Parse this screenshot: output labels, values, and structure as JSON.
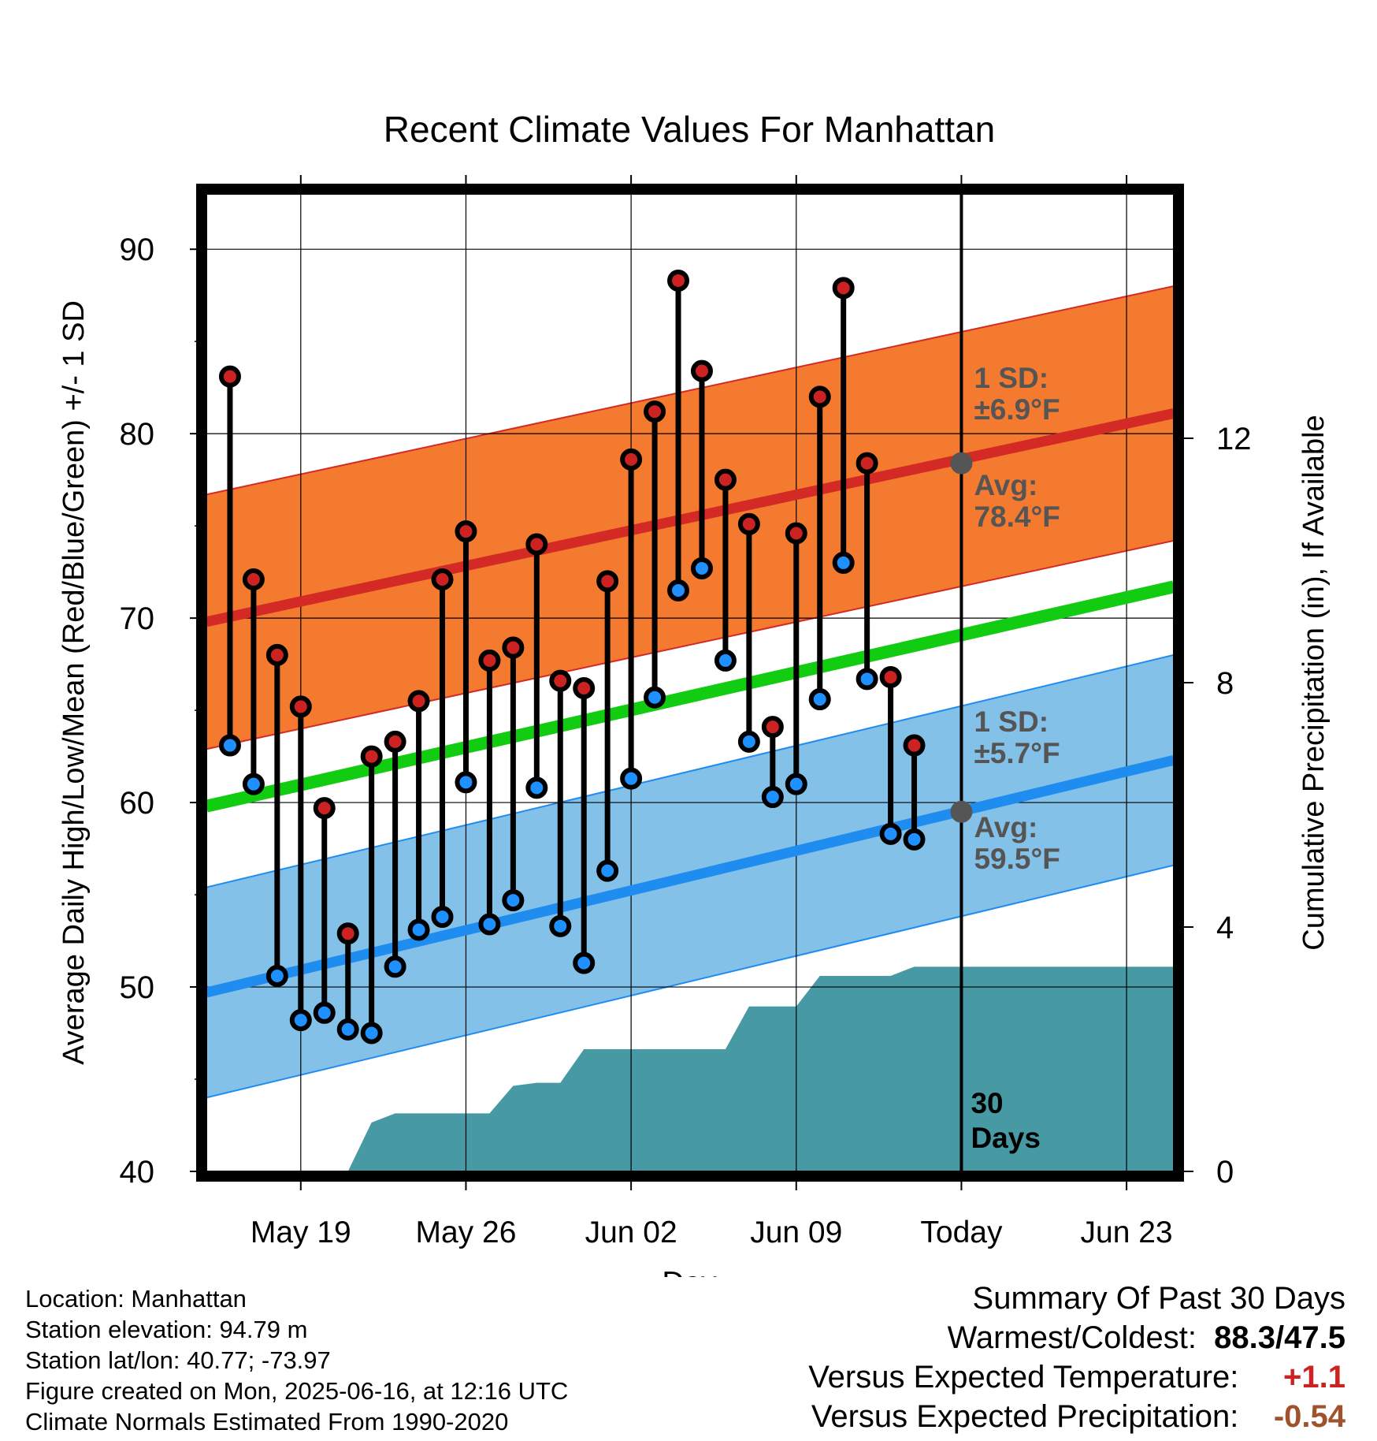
{
  "chart_data": {
    "type": "line",
    "title": "Recent Climate Values For Manhattan",
    "xlabel": "Day",
    "ylabel": "Average Daily High/Low/Mean (Red/Blue/Green) +/- 1 SD",
    "y2label": "Cumulative Precipitation (in), If Available",
    "ylim": [
      40,
      93
    ],
    "y2lim": [
      0,
      16
    ],
    "yticks": [
      "40",
      "50",
      "60",
      "70",
      "80",
      "90"
    ],
    "y2ticks": [
      "0",
      "4",
      "8",
      "12"
    ],
    "xticks": [
      {
        "date": "2025-05-19",
        "label": "May 19"
      },
      {
        "date": "2025-05-26",
        "label": "May 26"
      },
      {
        "date": "2025-06-02",
        "label": "Jun 02"
      },
      {
        "date": "2025-06-09",
        "label": "Jun 09"
      },
      {
        "date": "2025-06-16",
        "label": "Today"
      },
      {
        "date": "2025-06-23",
        "label": "Jun 23"
      }
    ],
    "xrange": [
      "2025-05-15",
      "2025-06-25"
    ],
    "grid": true,
    "observed": {
      "dates": [
        "2025-05-16",
        "2025-05-17",
        "2025-05-18",
        "2025-05-19",
        "2025-05-20",
        "2025-05-21",
        "2025-05-22",
        "2025-05-23",
        "2025-05-24",
        "2025-05-25",
        "2025-05-26",
        "2025-05-27",
        "2025-05-28",
        "2025-05-29",
        "2025-05-30",
        "2025-05-31",
        "2025-06-01",
        "2025-06-02",
        "2025-06-03",
        "2025-06-04",
        "2025-06-05",
        "2025-06-06",
        "2025-06-07",
        "2025-06-08",
        "2025-06-09",
        "2025-06-10",
        "2025-06-11",
        "2025-06-12",
        "2025-06-13",
        "2025-06-14",
        "2025-06-15"
      ],
      "high": [
        83.1,
        72.1,
        68.0,
        65.2,
        59.7,
        52.9,
        62.5,
        63.3,
        65.5,
        72.1,
        74.7,
        67.7,
        68.4,
        74.0,
        66.6,
        66.2,
        72.0,
        78.6,
        81.2,
        88.3,
        83.4,
        77.5,
        75.1,
        64.1,
        74.6,
        82.0,
        87.9,
        78.4,
        66.8,
        63.1,
        null
      ],
      "low": [
        63.1,
        61.0,
        50.6,
        48.2,
        48.6,
        47.7,
        47.5,
        51.1,
        53.1,
        53.8,
        61.1,
        53.4,
        54.7,
        60.8,
        53.3,
        51.3,
        56.3,
        61.3,
        65.7,
        71.5,
        72.7,
        67.7,
        63.3,
        60.3,
        61.0,
        65.6,
        73.0,
        66.7,
        58.3,
        58.0,
        null
      ]
    },
    "normals": {
      "dates": [
        "2025-05-15",
        "2025-06-25"
      ],
      "avg_high": [
        69.8,
        81.1
      ],
      "avg_low": [
        49.7,
        62.3
      ],
      "avg_mean": [
        59.8,
        71.7
      ],
      "high_sd": 6.9,
      "low_sd": 5.7
    },
    "precip": {
      "dates": [
        "2025-05-15",
        "2025-05-19",
        "2025-05-20",
        "2025-05-21",
        "2025-05-22",
        "2025-05-23",
        "2025-05-27",
        "2025-05-28",
        "2025-05-29",
        "2025-05-30",
        "2025-05-31",
        "2025-06-06",
        "2025-06-07",
        "2025-06-08",
        "2025-06-09",
        "2025-06-10",
        "2025-06-13",
        "2025-06-14",
        "2025-06-25"
      ],
      "cumulative": [
        0.0,
        0.0,
        0.0,
        0.0,
        0.8,
        0.95,
        0.95,
        1.4,
        1.45,
        1.45,
        2.0,
        2.0,
        2.7,
        2.7,
        2.7,
        3.2,
        3.2,
        3.35,
        3.35
      ]
    },
    "annotations": {
      "high_sd_label": "1 SD:",
      "high_sd_value": "±6.9°F",
      "high_avg_label": "Avg:",
      "high_avg_value": "78.4°F",
      "low_sd_label": "1 SD:",
      "low_sd_value": "±5.7°F",
      "low_avg_label": "Avg:",
      "low_avg_value": "59.5°F",
      "today_avg_high": 78.4,
      "today_avg_low": 59.5,
      "window_count": "30",
      "window_unit": "Days"
    },
    "colors": {
      "high_band": "#f47a2f",
      "high_line": "#d42a25",
      "low_band": "#84c1e8",
      "low_line": "#1f8cf0",
      "mean_line": "#12cc12",
      "precip": "#4799a4",
      "high_dot": "#cc2222",
      "low_dot": "#1e90ff",
      "annotation": "#555555",
      "summary_temp": "#cc2222",
      "summary_precip": "#a0522d"
    }
  },
  "footer": {
    "location": "Location: Manhattan",
    "elevation": "Station elevation: 94.79 m",
    "latlon": "Station lat/lon: 40.77; -73.97",
    "created": "Figure created on Mon, 2025-06-16, at 12:16 UTC",
    "normals": "Climate Normals Estimated From 1990-2020"
  },
  "summary": {
    "heading": "Summary Of Past 30 Days",
    "extremes_label": "Warmest/Coldest:",
    "extremes_value": "88.3/47.5",
    "temp_label": "Versus Expected Temperature:",
    "temp_value": "+1.1",
    "precip_label": "Versus Expected Precipitation:",
    "precip_value": "-0.54"
  }
}
